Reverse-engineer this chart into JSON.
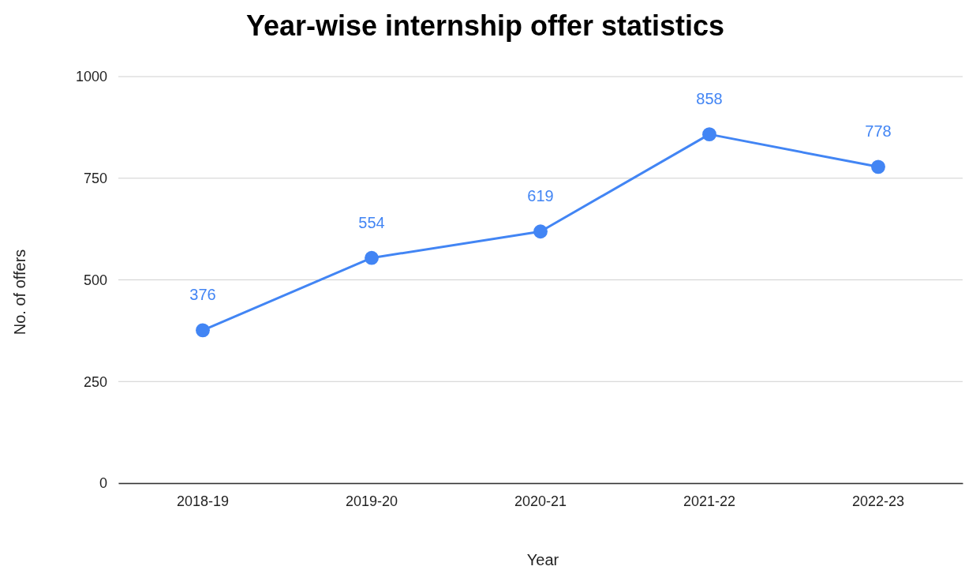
{
  "chart_data": {
    "type": "line",
    "title": "Year-wise internship offer statistics",
    "xlabel": "Year",
    "ylabel": "No. of offers",
    "categories": [
      "2018-19",
      "2019-20",
      "2020-21",
      "2021-22",
      "2022-23"
    ],
    "series": [
      {
        "color": "#4285f4",
        "values": [
          376,
          554,
          619,
          858,
          778
        ]
      }
    ],
    "ylim": [
      0,
      1000
    ],
    "yticks": [
      0,
      250,
      500,
      750,
      1000
    ],
    "grid": "y",
    "marker": "circle",
    "line_style": "solid",
    "data_labels": true
  }
}
